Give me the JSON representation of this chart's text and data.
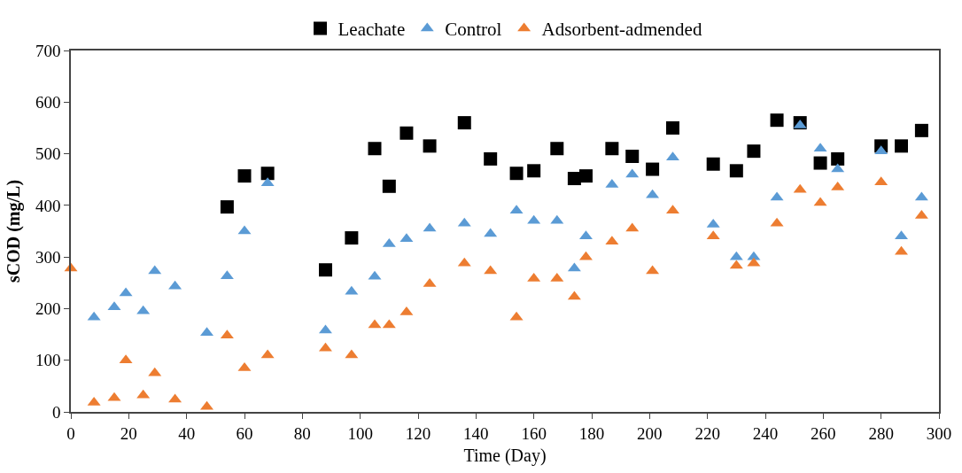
{
  "chart_data": {
    "type": "scatter",
    "xlabel": "Time (Day)",
    "ylabel": "sCOD (mg/L)",
    "xlim": [
      0,
      300
    ],
    "xticks": [
      0,
      20,
      40,
      60,
      80,
      100,
      120,
      140,
      160,
      180,
      200,
      220,
      240,
      260,
      280,
      300
    ],
    "ylim": [
      0,
      700
    ],
    "yticks": [
      0,
      100,
      200,
      300,
      400,
      500,
      600,
      700
    ],
    "legend": "top",
    "series": [
      {
        "name": "Leachate",
        "color": "#000000",
        "marker": "square",
        "x": [
          54,
          60,
          68,
          88,
          97,
          105,
          110,
          116,
          124,
          136,
          145,
          154,
          160,
          168,
          174,
          178,
          187,
          194,
          201,
          208,
          222,
          230,
          236,
          244,
          252,
          259,
          265,
          280,
          287,
          294
        ],
        "values": [
          397,
          457,
          462,
          275,
          337,
          510,
          437,
          540,
          515,
          560,
          490,
          462,
          467,
          510,
          452,
          457,
          510,
          495,
          470,
          550,
          480,
          467,
          505,
          565,
          560,
          482,
          490,
          515,
          515,
          545
        ]
      },
      {
        "name": "Control",
        "color": "#5b9bd5",
        "marker": "triangle",
        "x": [
          8,
          15,
          19,
          25,
          29,
          36,
          47,
          54,
          60,
          68,
          88,
          97,
          105,
          110,
          116,
          124,
          136,
          145,
          154,
          160,
          168,
          174,
          178,
          187,
          194,
          201,
          208,
          222,
          230,
          236,
          244,
          252,
          259,
          265,
          280,
          287,
          294
        ],
        "values": [
          183,
          203,
          230,
          195,
          273,
          243,
          153,
          263,
          350,
          443,
          158,
          233,
          262,
          325,
          335,
          355,
          365,
          345,
          390,
          370,
          370,
          278,
          340,
          440,
          460,
          420,
          493,
          363,
          300,
          300,
          415,
          555,
          510,
          470,
          505,
          340,
          415
        ]
      },
      {
        "name": "Adsorbent-admended",
        "color": "#ed7d31",
        "marker": "triangle",
        "x": [
          0,
          8,
          15,
          19,
          25,
          29,
          36,
          47,
          54,
          60,
          68,
          88,
          97,
          105,
          110,
          116,
          124,
          136,
          145,
          154,
          160,
          168,
          174,
          178,
          187,
          194,
          201,
          208,
          222,
          230,
          236,
          244,
          252,
          259,
          265,
          280,
          287,
          294
        ],
        "values": [
          278,
          18,
          27,
          100,
          32,
          75,
          24,
          10,
          148,
          85,
          110,
          123,
          110,
          168,
          168,
          193,
          248,
          288,
          273,
          183,
          258,
          258,
          223,
          300,
          330,
          355,
          273,
          390,
          340,
          283,
          288,
          365,
          430,
          405,
          435,
          445,
          310,
          380
        ]
      }
    ]
  }
}
